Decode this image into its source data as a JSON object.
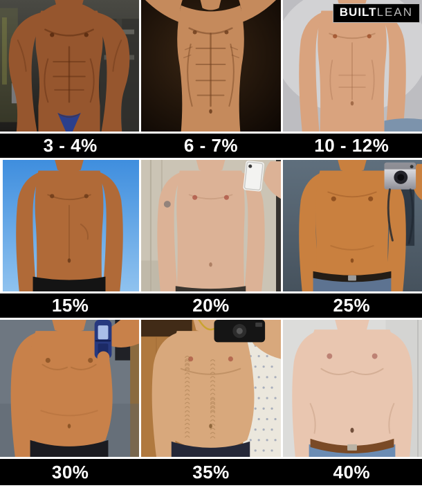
{
  "logo": {
    "text_bold": "BUILT",
    "text_light": "LEAN",
    "bg": "#000000",
    "bold_color": "#ffffff",
    "light_color": "#b9b9b9"
  },
  "label_bar": {
    "bg": "#000000",
    "text_color": "#ffffff"
  },
  "panels": [
    {
      "label": "3 - 4%",
      "build": "bodybuilder",
      "scene": "gym-stage",
      "skin": "#96562e",
      "shade": "#57290e",
      "cloth": "#2b3f8c",
      "bg_colors": [
        "#4a4a44",
        "#1d1c1a"
      ]
    },
    {
      "label": "6 - 7%",
      "build": "shredded-arms-up",
      "scene": "dark-studio",
      "skin": "#c58a5c",
      "shade": "#70401f",
      "cloth": null,
      "bg_colors": [
        "#3a2614",
        "#0a0502"
      ]
    },
    {
      "label": "10 - 12%",
      "build": "lean",
      "scene": "light-studio",
      "skin": "#d9a37e",
      "shade": "#9c6644",
      "cloth": "#7c93ac",
      "bg_colors": [
        "#d2d2d4",
        "#bdbdc1"
      ]
    },
    {
      "label": "15%",
      "build": "athletic",
      "scene": "outdoor-sky",
      "skin": "#b06a38",
      "shade": "#6e3c1a",
      "cloth": "#141414",
      "bg_colors": [
        "#3f8ede",
        "#8fc2ef"
      ]
    },
    {
      "label": "20%",
      "build": "average",
      "scene": "mirror-selfie-white-phone",
      "skin": "#dcb296",
      "shade": "#a87a5e",
      "cloth": "#3a352f",
      "bg_colors": [
        "#cbc4b5",
        "#b6ae9e"
      ]
    },
    {
      "label": "25%",
      "build": "soft",
      "scene": "mirror-selfie-silver-camera",
      "skin": "#c9803f",
      "shade": "#87491b",
      "cloth": "#5d7391",
      "belt": "#241d16",
      "bg_colors": [
        "#5f6f7d",
        "#46525d"
      ]
    },
    {
      "label": "30%",
      "build": "heavy",
      "scene": "mirror-selfie-flip-phone",
      "skin": "#c8814a",
      "shade": "#8a5224",
      "cloth": "#1b1b20",
      "bg_colors": [
        "#6e7781",
        "#596069"
      ]
    },
    {
      "label": "35%",
      "build": "heavy-hairy",
      "scene": "mirror-selfie-black-camera",
      "skin": "#d8a87c",
      "shade": "#8a6136",
      "cloth": "#252838",
      "bg_colors": [
        "#b0793f",
        "#ebe7dd"
      ]
    },
    {
      "label": "40%",
      "build": "obese",
      "scene": "light-room",
      "skin": "#e9c6b0",
      "shade": "#b08468",
      "cloth": "#6b8cb3",
      "belt": "#7a4a26",
      "bg_colors": [
        "#dcdcda",
        "#cfcfcd"
      ]
    }
  ]
}
